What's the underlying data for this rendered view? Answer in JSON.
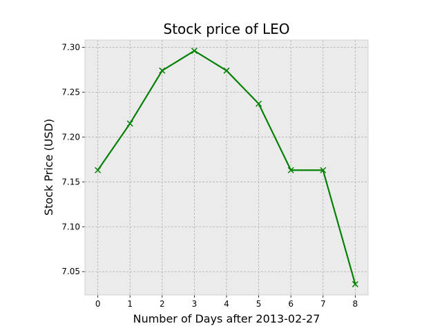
{
  "chart_data": {
    "type": "line",
    "title": "Stock price of LEO",
    "xlabel": "Number of Days after 2013-02-27",
    "ylabel": "Stock Price (USD)",
    "x": [
      0,
      1,
      2,
      3,
      4,
      5,
      6,
      7,
      8
    ],
    "series": [
      {
        "values": [
          7.163,
          7.215,
          7.274,
          7.296,
          7.274,
          7.237,
          7.163,
          7.163,
          7.036
        ],
        "color": "#008000",
        "marker": "x"
      }
    ],
    "xlim": [
      -0.4,
      8.4
    ],
    "ylim": [
      7.024,
      7.308
    ],
    "xticks": [
      "0",
      "1",
      "2",
      "3",
      "4",
      "5",
      "6",
      "7",
      "8"
    ],
    "yticks": [
      "7.05",
      "7.10",
      "7.15",
      "7.20",
      "7.25",
      "7.30"
    ],
    "grid": true,
    "legend": "none",
    "colors": {
      "plot_background": "#ebebeb",
      "grid": "#b0b0b0",
      "line": "#008000"
    }
  }
}
